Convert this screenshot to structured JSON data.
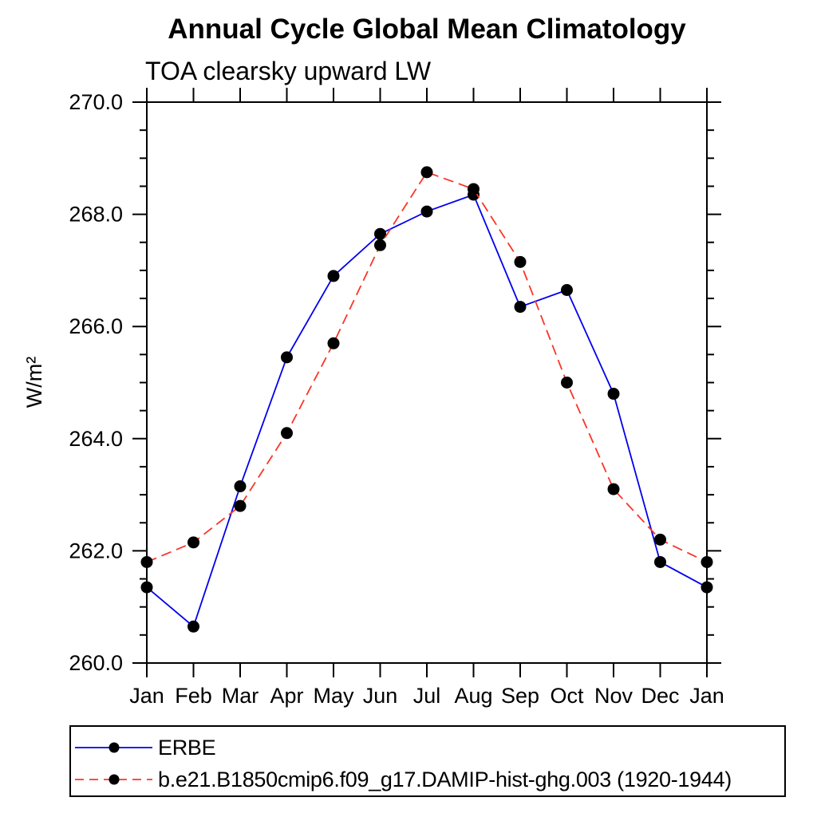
{
  "chart_data": {
    "type": "line",
    "title": "Annual Cycle Global Mean Climatology",
    "subtitle": "TOA clearsky upward LW",
    "ylabel": "W/m²",
    "xlabel": "",
    "x_categories": [
      "Jan",
      "Feb",
      "Mar",
      "Apr",
      "May",
      "Jun",
      "Jul",
      "Aug",
      "Sep",
      "Oct",
      "Nov",
      "Dec",
      "Jan"
    ],
    "ylim": [
      260.0,
      270.0
    ],
    "y_major_tick_step": 2.0,
    "y_minor_tick_step": 0.5,
    "y_tick_labels": [
      "260.0",
      "262.0",
      "264.0",
      "266.0",
      "268.0",
      "270.0"
    ],
    "grid": false,
    "legend": {
      "position": "bottom-left",
      "border": true
    },
    "series": [
      {
        "name": "ERBE",
        "line_color": "#0000ee",
        "line_style": "solid",
        "marker": "filled-circle",
        "marker_color": "#000000",
        "values": [
          261.35,
          260.65,
          263.15,
          265.45,
          266.9,
          267.65,
          268.05,
          268.35,
          266.35,
          266.65,
          264.8,
          261.8,
          261.35
        ]
      },
      {
        "name": "b.e21.B1850cmip6.f09_g17.DAMIP-hist-ghg.003 (1920-1944)",
        "line_color": "#f93527",
        "line_style": "dashed",
        "marker": "filled-circle",
        "marker_color": "#000000",
        "values": [
          261.8,
          262.15,
          262.8,
          264.1,
          265.7,
          267.45,
          268.75,
          268.45,
          267.15,
          265.0,
          263.1,
          262.2,
          261.8
        ]
      }
    ]
  }
}
